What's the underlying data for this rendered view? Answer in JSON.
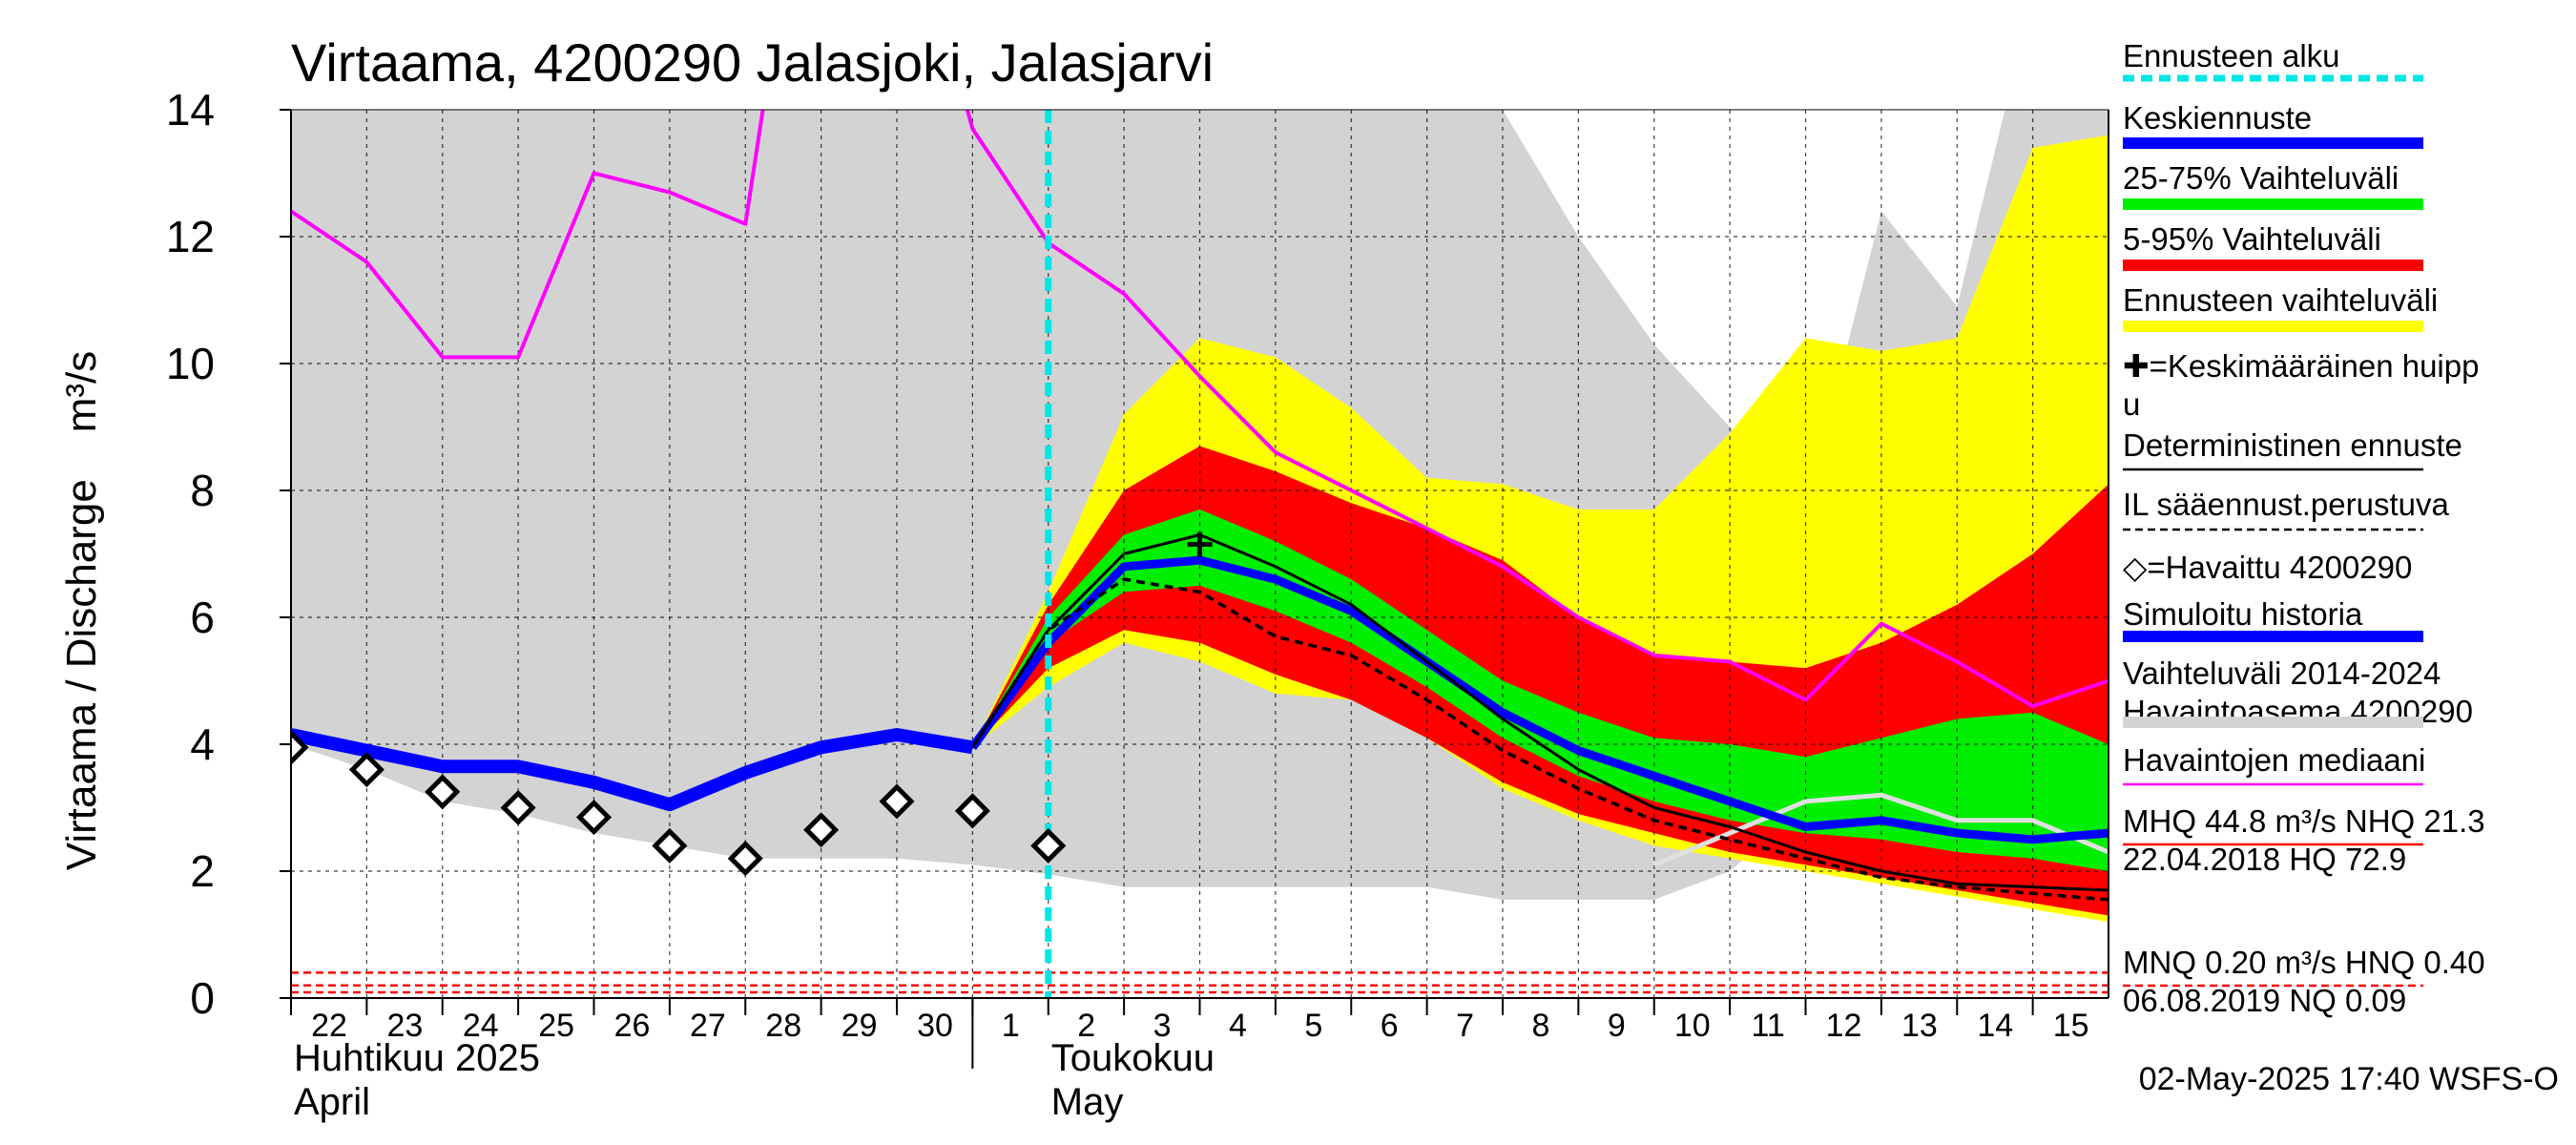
{
  "chart_data": {
    "type": "area",
    "title": "Virtaama, 4200290 Jalasjoki, Jalasjarvi",
    "ylabel": "Virtaama / Discharge    m³/s",
    "ylim": [
      0,
      14
    ],
    "yticks": [
      0,
      2,
      4,
      6,
      8,
      10,
      12,
      14
    ],
    "grid": true,
    "x_dates": [
      "2025-04-22",
      "2025-04-23",
      "2025-04-24",
      "2025-04-25",
      "2025-04-26",
      "2025-04-27",
      "2025-04-28",
      "2025-04-29",
      "2025-04-30",
      "2025-05-01",
      "2025-05-02",
      "2025-05-03",
      "2025-05-04",
      "2025-05-05",
      "2025-05-06",
      "2025-05-07",
      "2025-05-08",
      "2025-05-09",
      "2025-05-10",
      "2025-05-11",
      "2025-05-12",
      "2025-05-13",
      "2025-05-14",
      "2025-05-15",
      "2025-05-16"
    ],
    "x_ticklabels": [
      "22",
      "23",
      "24",
      "25",
      "26",
      "27",
      "28",
      "29",
      "30",
      "1",
      "2",
      "3",
      "4",
      "5",
      "6",
      "7",
      "8",
      "9",
      "10",
      "11",
      "12",
      "13",
      "14",
      "15"
    ],
    "month_labels": [
      {
        "line1": "Huhtikuu  2025",
        "line2": "April"
      },
      {
        "line1": "Toukokuu",
        "line2": "May"
      }
    ],
    "forecast_start": "2025-05-02",
    "history_range": {
      "x": [
        "2025-04-22",
        "2025-04-23",
        "2025-04-24",
        "2025-04-25",
        "2025-04-26",
        "2025-04-27",
        "2025-04-28",
        "2025-04-29",
        "2025-04-30",
        "2025-05-01",
        "2025-05-02",
        "2025-05-03",
        "2025-05-04",
        "2025-05-05",
        "2025-05-06",
        "2025-05-07",
        "2025-05-08",
        "2025-05-09",
        "2025-05-10",
        "2025-05-11",
        "2025-05-12",
        "2025-05-13",
        "2025-05-14",
        "2025-05-15",
        "2025-05-16"
      ],
      "low": [
        4.0,
        3.6,
        3.1,
        2.9,
        2.6,
        2.4,
        2.2,
        2.2,
        2.2,
        2.1,
        1.95,
        1.75,
        1.75,
        1.75,
        1.75,
        1.75,
        1.55,
        1.55,
        1.55,
        2.0,
        3.0,
        3.1,
        2.8,
        2.8,
        2.3
      ],
      "high": [
        14,
        14,
        14,
        14,
        14,
        14,
        14,
        14,
        14,
        14,
        14,
        14,
        14,
        14,
        14,
        14,
        14,
        12.0,
        10.3,
        9.0,
        7.7,
        12.4,
        10.9,
        15.8,
        15.8
      ]
    },
    "forecast_bands": {
      "x": [
        "2025-05-01",
        "2025-05-02",
        "2025-05-03",
        "2025-05-04",
        "2025-05-05",
        "2025-05-06",
        "2025-05-07",
        "2025-05-08",
        "2025-05-09",
        "2025-05-10",
        "2025-05-11",
        "2025-05-12",
        "2025-05-13",
        "2025-05-14",
        "2025-05-15",
        "2025-05-16"
      ],
      "total_low": [
        3.95,
        4.9,
        5.6,
        5.3,
        4.8,
        4.7,
        4.1,
        3.3,
        2.8,
        2.4,
        2.2,
        2.0,
        1.8,
        1.6,
        1.4,
        1.2
      ],
      "total_high": [
        3.95,
        6.4,
        9.2,
        10.4,
        10.1,
        9.3,
        8.2,
        8.1,
        7.7,
        7.7,
        8.9,
        10.4,
        10.2,
        10.4,
        13.4,
        13.6
      ],
      "p5": [
        3.95,
        5.2,
        5.8,
        5.6,
        5.1,
        4.7,
        4.1,
        3.4,
        2.9,
        2.6,
        2.3,
        2.1,
        1.9,
        1.7,
        1.5,
        1.3
      ],
      "p95": [
        3.95,
        6.2,
        8.0,
        8.7,
        8.3,
        7.8,
        7.4,
        6.9,
        6.0,
        5.4,
        5.3,
        5.2,
        5.6,
        6.2,
        7.0,
        8.1
      ],
      "p25": [
        3.95,
        5.6,
        6.4,
        6.5,
        6.1,
        5.6,
        4.9,
        4.1,
        3.5,
        3.1,
        2.8,
        2.6,
        2.5,
        2.3,
        2.2,
        2.0
      ],
      "p75": [
        3.95,
        6.0,
        7.3,
        7.7,
        7.2,
        6.6,
        5.8,
        5.0,
        4.5,
        4.1,
        4.0,
        3.8,
        4.1,
        4.4,
        4.5,
        4.0
      ]
    },
    "series": [
      {
        "name": "Keskiennuste",
        "color": "#0000ff",
        "x": [
          "2025-05-01",
          "2025-05-02",
          "2025-05-03",
          "2025-05-04",
          "2025-05-05",
          "2025-05-06",
          "2025-05-07",
          "2025-05-08",
          "2025-05-09",
          "2025-05-10",
          "2025-05-11",
          "2025-05-12",
          "2025-05-13",
          "2025-05-14",
          "2025-05-15",
          "2025-05-16"
        ],
        "values": [
          3.95,
          5.6,
          6.8,
          6.9,
          6.6,
          6.1,
          5.3,
          4.5,
          3.9,
          3.5,
          3.1,
          2.7,
          2.8,
          2.6,
          2.5,
          2.6
        ]
      },
      {
        "name": "Deterministinen ennuste",
        "color": "#000000",
        "x": [
          "2025-05-01",
          "2025-05-02",
          "2025-05-03",
          "2025-05-04",
          "2025-05-05",
          "2025-05-06",
          "2025-05-07",
          "2025-05-08",
          "2025-05-09",
          "2025-05-10",
          "2025-05-11",
          "2025-05-12",
          "2025-05-13",
          "2025-05-14",
          "2025-05-15",
          "2025-05-16"
        ],
        "values": [
          3.95,
          5.8,
          7.0,
          7.3,
          6.8,
          6.2,
          5.3,
          4.4,
          3.6,
          3.0,
          2.7,
          2.3,
          2.0,
          1.8,
          1.75,
          1.7
        ]
      },
      {
        "name": "IL sääennust.perustuva",
        "color": "#000000",
        "dashed": true,
        "x": [
          "2025-05-01",
          "2025-05-02",
          "2025-05-03",
          "2025-05-04",
          "2025-05-05",
          "2025-05-06",
          "2025-05-07",
          "2025-05-08",
          "2025-05-09",
          "2025-05-10",
          "2025-05-11",
          "2025-05-12",
          "2025-05-13",
          "2025-05-14",
          "2025-05-15",
          "2025-05-16"
        ],
        "values": [
          3.95,
          5.8,
          6.6,
          6.4,
          5.7,
          5.4,
          4.7,
          3.9,
          3.3,
          2.8,
          2.5,
          2.2,
          1.9,
          1.75,
          1.65,
          1.55
        ]
      },
      {
        "name": "Simuloitu historia",
        "color": "#0000ff",
        "x": [
          "2025-04-22",
          "2025-04-23",
          "2025-04-24",
          "2025-04-25",
          "2025-04-26",
          "2025-04-27",
          "2025-04-28",
          "2025-04-29",
          "2025-04-30",
          "2025-05-01"
        ],
        "values": [
          4.15,
          3.9,
          3.65,
          3.65,
          3.4,
          3.05,
          3.55,
          3.95,
          4.15,
          3.95
        ]
      },
      {
        "name": "Havaintojen mediaani",
        "color": "#ff00ff",
        "x": [
          "2025-04-22",
          "2025-04-23",
          "2025-04-24",
          "2025-04-25",
          "2025-04-26",
          "2025-04-27",
          "2025-04-28",
          "2025-04-29",
          "2025-04-30",
          "2025-05-01",
          "2025-05-02",
          "2025-05-03",
          "2025-05-04",
          "2025-05-05",
          "2025-05-06",
          "2025-05-07",
          "2025-05-08",
          "2025-05-09",
          "2025-05-10",
          "2025-05-11",
          "2025-05-12",
          "2025-05-13",
          "2025-05-14",
          "2025-05-15",
          "2025-05-16"
        ],
        "values": [
          12.4,
          11.6,
          10.1,
          10.1,
          13.0,
          12.7,
          12.2,
          20.0,
          18.0,
          13.7,
          11.9,
          11.1,
          9.8,
          8.6,
          8.0,
          7.4,
          6.8,
          6.0,
          5.4,
          5.3,
          4.7,
          5.9,
          5.3,
          4.6,
          5.0
        ]
      },
      {
        "name": "simulated-range-line",
        "color": "#e0e0e0",
        "x": [
          "2025-05-10",
          "2025-05-11",
          "2025-05-12",
          "2025-05-13",
          "2025-05-14",
          "2025-05-15",
          "2025-05-16"
        ],
        "values": [
          2.1,
          2.6,
          3.1,
          3.2,
          2.8,
          2.8,
          2.3
        ]
      }
    ],
    "observed": {
      "name": "=Havaittu 4200290",
      "x": [
        "2025-04-22",
        "2025-04-23",
        "2025-04-24",
        "2025-04-25",
        "2025-04-26",
        "2025-04-27",
        "2025-04-28",
        "2025-04-29",
        "2025-04-30",
        "2025-05-01",
        "2025-05-02"
      ],
      "values": [
        3.95,
        3.6,
        3.25,
        3.0,
        2.85,
        2.4,
        2.2,
        2.65,
        3.1,
        2.95,
        2.4
      ]
    },
    "mean_peak": {
      "x": "2025-05-04",
      "value": 7.15
    },
    "reference_lines": [
      0.2,
      0.4,
      0.09
    ],
    "legend": {
      "position": "right",
      "items": [
        {
          "label": "Ennusteen alku",
          "color": "#00e5e5",
          "style": "dashed"
        },
        {
          "label": "Keskiennuste",
          "color": "#0000ff",
          "style": "thick"
        },
        {
          "label": "25-75% Vaihteluväli",
          "color": "#00ee00",
          "style": "thick"
        },
        {
          "label": "5-95% Vaihteluväli",
          "color": "#ff0000",
          "style": "thick"
        },
        {
          "label": "Ennusteen vaihteluväli",
          "color": "#ffff00",
          "style": "thick"
        },
        {
          "label": "✚=Keskimääräinen huipp",
          "label2": "u",
          "color": "#000000",
          "style": "none"
        },
        {
          "label": "Deterministinen ennuste",
          "color": "#000000",
          "style": "thin"
        },
        {
          "label": "IL sääennust.perustuva",
          "color": "#000000",
          "style": "dashed"
        },
        {
          "label": "◇=Havaittu 4200290",
          "color": "#000000",
          "style": "none"
        },
        {
          "label": "Simuloitu historia",
          "color": "#0000ff",
          "style": "thick"
        },
        {
          "label": "Vaihteluväli 2014-2024",
          "label2": " Havaintoasema 4200290",
          "color": "#d3d3d3",
          "style": "thick"
        },
        {
          "label": "Havaintojen mediaani",
          "color": "#ff00ff",
          "style": "thin"
        },
        {
          "label": "MHQ 44.8 m³/s NHQ 21.3",
          "label2": "22.04.2018 HQ 72.9",
          "color": "#ff0000",
          "style": "thin"
        },
        {
          "label": "MNQ 0.20 m³/s HNQ 0.40",
          "label2": "06.08.2019 NQ 0.09",
          "color": "#ff0000",
          "style": "dashed"
        }
      ]
    },
    "footer": "02-May-2025 17:40 WSFS-O"
  }
}
